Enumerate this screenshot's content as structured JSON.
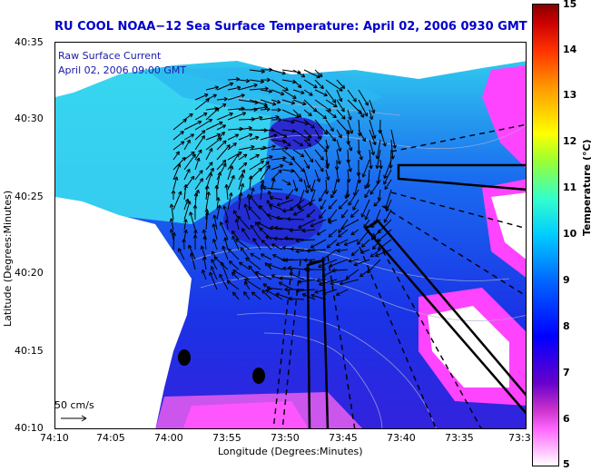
{
  "title": "RU COOL  NOAA−12  Sea Surface Temperature:  April 02, 2006 0930 GMT",
  "legend": {
    "line1": "Raw Surface Current",
    "line2": "April 02, 2006 09:00 GMT"
  },
  "scale": {
    "label": "50 cm/s"
  },
  "axes": {
    "xlabel": "Longitude (Degrees:Minutes)",
    "ylabel": "Latitude (Degrees:Minutes)",
    "x_ticks": [
      "74:10",
      "74:05",
      "74:00",
      "73:55",
      "73:50",
      "73:45",
      "73:40",
      "73:35",
      "73:3"
    ],
    "y_ticks": [
      "40:35",
      "40:30",
      "40:25",
      "40:20",
      "40:15",
      "40:10"
    ]
  },
  "colorbar": {
    "label": "Temperature (°C)",
    "ticks": [
      "15",
      "14",
      "13",
      "12",
      "11",
      "10",
      "9",
      "8",
      "7",
      "6",
      "5"
    ],
    "min": 5,
    "max": 15
  },
  "colors": {
    "title": "#0000cc",
    "land": "#ffffff",
    "water_cold": "#2233ee",
    "water_warm": "#33ccee",
    "hot_spot": "#ff33ff"
  }
}
